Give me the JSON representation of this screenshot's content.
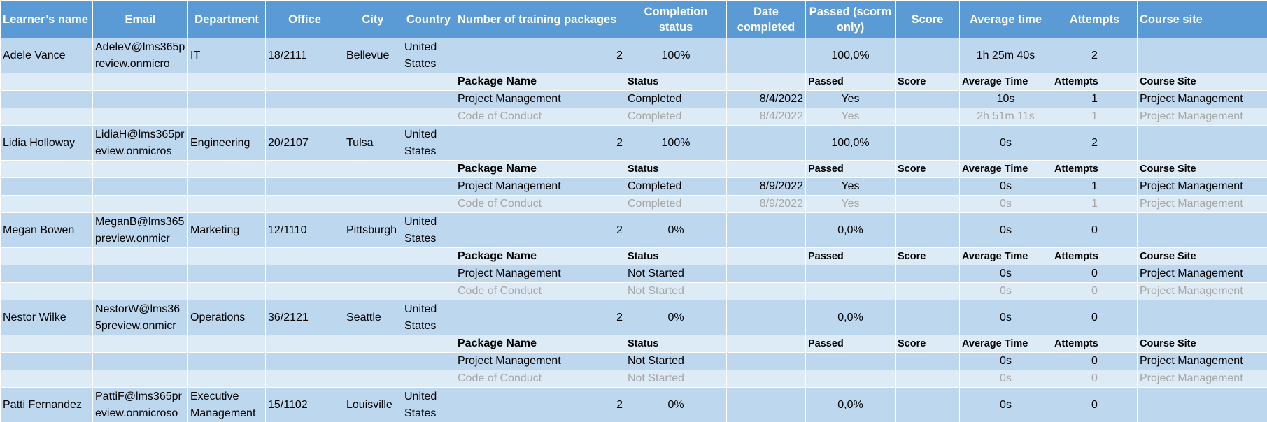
{
  "table": {
    "columns": [
      "Learner’s name",
      "Email",
      "Department",
      "Office",
      "City",
      "Country",
      "Number of training packages",
      "Completion status",
      "Date completed",
      "Passed (scorm only)",
      "Score",
      "Average time",
      "Attempts",
      "Course site"
    ],
    "learners": [
      {
        "cells": [
          "Adele Vance",
          "AdeleV@lms365preview.onmicro",
          "IT",
          "18/2111",
          "Bellevue",
          "United States",
          2,
          "100%",
          null,
          "100,0%",
          null,
          "1h 25m 40s",
          2,
          null
        ],
        "detail_header": [
          "Package Name",
          "Status",
          null,
          "Passed",
          "Score",
          "Average Time",
          "Attempts",
          "Course Site"
        ],
        "packages": [
          [
            "Project Management",
            "Completed",
            "8/4/2022",
            "Yes",
            null,
            "10s",
            1,
            "Project Management"
          ],
          [
            "Code of Conduct",
            "Completed",
            "8/4/2022",
            "Yes",
            null,
            "2h 51m 11s",
            1,
            "Project Management"
          ]
        ]
      },
      {
        "cells": [
          "Lidia Holloway",
          "LidiaH@lms365preview.onmicros",
          "Engineering",
          "20/2107",
          "Tulsa",
          "United States",
          2,
          "100%",
          null,
          "100,0%",
          null,
          "0s",
          2,
          null
        ],
        "detail_header": [
          "Package Name",
          "Status",
          null,
          "Passed",
          "Score",
          "Average Time",
          "Attempts",
          "Course Site"
        ],
        "packages": [
          [
            "Project Management",
            "Completed",
            "8/9/2022",
            "Yes",
            null,
            "0s",
            1,
            "Project Management"
          ],
          [
            "Code of Conduct",
            "Completed",
            "8/9/2022",
            "Yes",
            null,
            "0s",
            1,
            "Project Management"
          ]
        ]
      },
      {
        "cells": [
          "Megan Bowen",
          "MeganB@lms365preview.onmicr",
          "Marketing",
          "12/1110",
          "Pittsburgh",
          "United States",
          2,
          "0%",
          null,
          "0,0%",
          null,
          "0s",
          0,
          null
        ],
        "detail_header": [
          "Package Name",
          "Status",
          null,
          "Passed",
          "Score",
          "Average Time",
          "Attempts",
          "Course Site"
        ],
        "packages": [
          [
            "Project Management",
            "Not Started",
            null,
            null,
            null,
            "0s",
            0,
            "Project Management"
          ],
          [
            "Code of Conduct",
            "Not Started",
            null,
            null,
            null,
            "0s",
            0,
            "Project Management"
          ]
        ]
      },
      {
        "cells": [
          "Nestor Wilke",
          "NestorW@lms365preview.onmicr",
          "Operations",
          "36/2121",
          "Seattle",
          "United States",
          2,
          "0%",
          null,
          "0,0%",
          null,
          "0s",
          0,
          null
        ],
        "detail_header": [
          "Package Name",
          "Status",
          null,
          "Passed",
          "Score",
          "Average Time",
          "Attempts",
          "Course Site"
        ],
        "packages": [
          [
            "Project Management",
            "Not Started",
            null,
            null,
            null,
            "0s",
            0,
            "Project Management"
          ],
          [
            "Code of Conduct",
            "Not Started",
            null,
            null,
            null,
            "0s",
            0,
            "Project Management"
          ]
        ]
      },
      {
        "cells": [
          "Patti Fernandez",
          "PattiF@lms365preview.onmicroso",
          "Executive Management",
          "15/1102",
          "Louisville",
          "United States",
          2,
          "0%",
          null,
          "0,0%",
          null,
          "0s",
          0,
          null
        ]
      }
    ]
  }
}
